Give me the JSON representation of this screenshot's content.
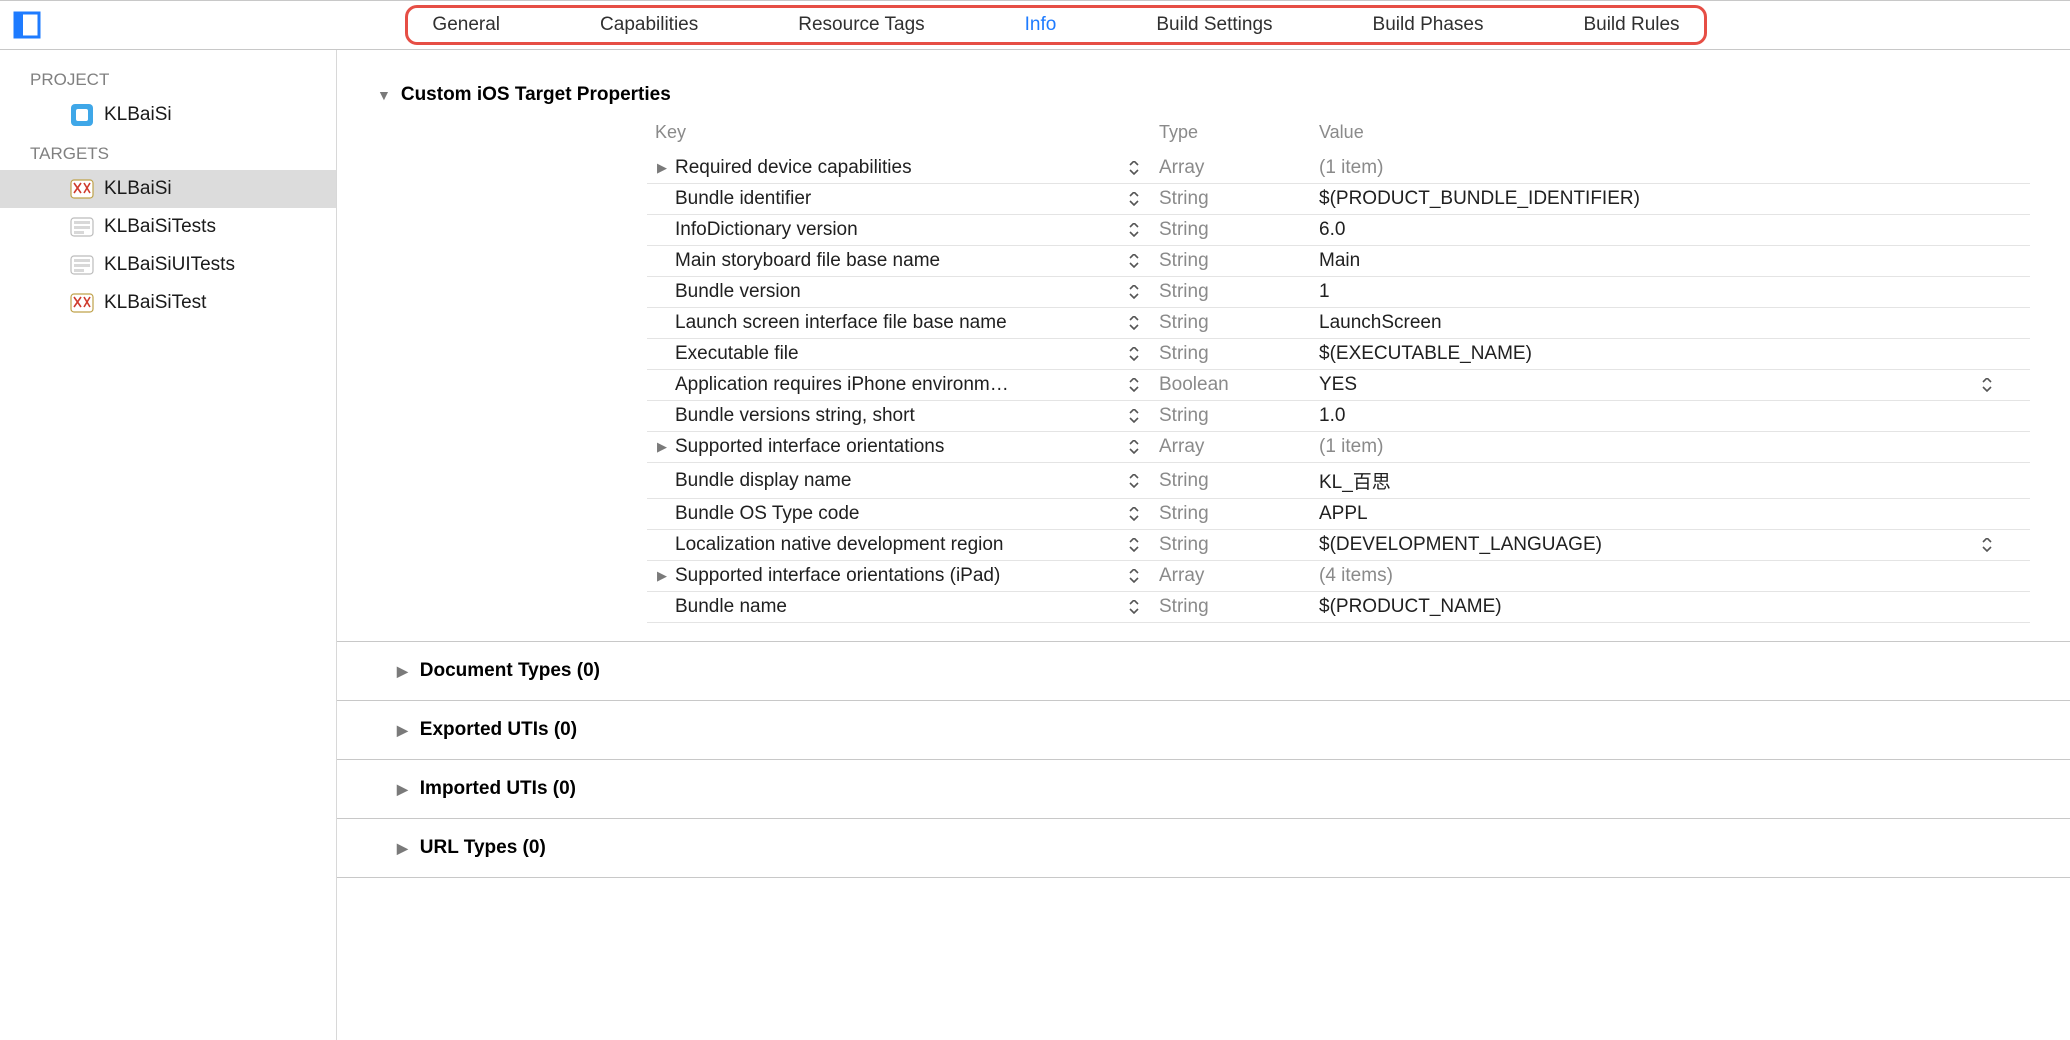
{
  "tabs": {
    "items": [
      "General",
      "Capabilities",
      "Resource Tags",
      "Info",
      "Build Settings",
      "Build Phases",
      "Build Rules"
    ],
    "active_index": 3,
    "highlight_color": "#e64e45",
    "active_color": "#1e7bff"
  },
  "sidebar": {
    "project_label": "PROJECT",
    "targets_label": "TARGETS",
    "project": {
      "name": "KLBaiSi"
    },
    "targets": [
      {
        "name": "KLBaiSi",
        "icon": "app",
        "selected": true
      },
      {
        "name": "KLBaiSiTests",
        "icon": "test",
        "selected": false
      },
      {
        "name": "KLBaiSiUITests",
        "icon": "test",
        "selected": false
      },
      {
        "name": "KLBaiSiTest",
        "icon": "app",
        "selected": false
      }
    ]
  },
  "plist": {
    "section_title": "Custom iOS Target Properties",
    "columns": {
      "key": "Key",
      "type": "Type",
      "value": "Value"
    },
    "rows": [
      {
        "expandable": true,
        "key": "Required device capabilities",
        "type": "Array",
        "value": "(1 item)",
        "dim": true,
        "trailing_stepper": false
      },
      {
        "expandable": false,
        "key": "Bundle identifier",
        "type": "String",
        "value": "$(PRODUCT_BUNDLE_IDENTIFIER)",
        "dim": false,
        "trailing_stepper": false
      },
      {
        "expandable": false,
        "key": "InfoDictionary version",
        "type": "String",
        "value": "6.0",
        "dim": false,
        "trailing_stepper": false
      },
      {
        "expandable": false,
        "key": "Main storyboard file base name",
        "type": "String",
        "value": "Main",
        "dim": false,
        "trailing_stepper": false
      },
      {
        "expandable": false,
        "key": "Bundle version",
        "type": "String",
        "value": "1",
        "dim": false,
        "trailing_stepper": false
      },
      {
        "expandable": false,
        "key": "Launch screen interface file base name",
        "type": "String",
        "value": "LaunchScreen",
        "dim": false,
        "trailing_stepper": false
      },
      {
        "expandable": false,
        "key": "Executable file",
        "type": "String",
        "value": "$(EXECUTABLE_NAME)",
        "dim": false,
        "trailing_stepper": false
      },
      {
        "expandable": false,
        "key": "Application requires iPhone environm…",
        "type": "Boolean",
        "value": "YES",
        "dim": false,
        "trailing_stepper": true
      },
      {
        "expandable": false,
        "key": "Bundle versions string, short",
        "type": "String",
        "value": "1.0",
        "dim": false,
        "trailing_stepper": false
      },
      {
        "expandable": true,
        "key": "Supported interface orientations",
        "type": "Array",
        "value": "(1 item)",
        "dim": true,
        "trailing_stepper": false
      },
      {
        "expandable": false,
        "key": "Bundle display name",
        "type": "String",
        "value": "KL_百思",
        "dim": false,
        "trailing_stepper": false
      },
      {
        "expandable": false,
        "key": "Bundle OS Type code",
        "type": "String",
        "value": "APPL",
        "dim": false,
        "trailing_stepper": false
      },
      {
        "expandable": false,
        "key": "Localization native development region",
        "type": "String",
        "value": "$(DEVELOPMENT_LANGUAGE)",
        "dim": false,
        "trailing_stepper": true
      },
      {
        "expandable": true,
        "key": "Supported interface orientations (iPad)",
        "type": "Array",
        "value": "(4 items)",
        "dim": true,
        "trailing_stepper": false
      },
      {
        "expandable": false,
        "key": "Bundle name",
        "type": "String",
        "value": "$(PRODUCT_NAME)",
        "dim": false,
        "trailing_stepper": false
      }
    ]
  },
  "subsections": [
    {
      "title": "Document Types (0)"
    },
    {
      "title": "Exported UTIs (0)"
    },
    {
      "title": "Imported UTIs (0)"
    },
    {
      "title": "URL Types (0)"
    }
  ]
}
